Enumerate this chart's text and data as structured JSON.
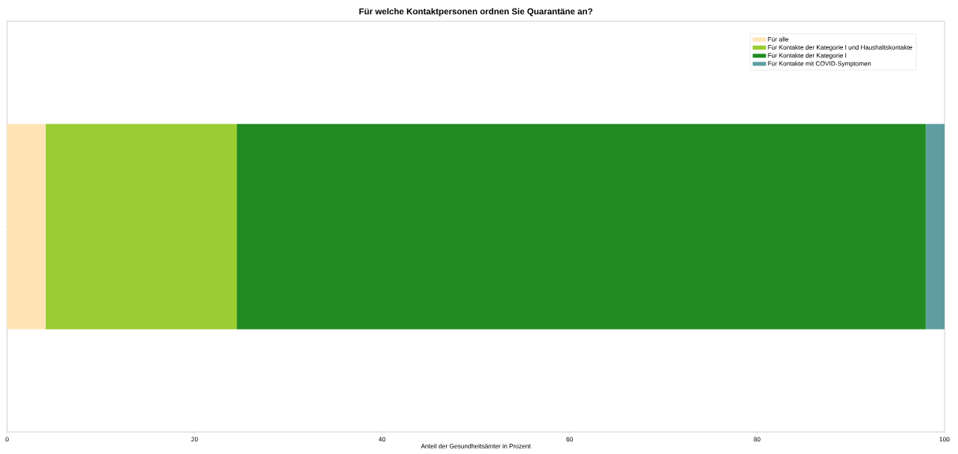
{
  "chart_data": {
    "type": "bar",
    "orientation": "horizontal",
    "stacked": true,
    "title": "Für welche Kontaktpersonen ordnen Sie Quarantäne an?",
    "xlabel": "Anteil der Gesundheitsämter in Prozent",
    "categories": [
      null
    ],
    "series": [
      {
        "name": "Für alle",
        "color": "#ffe4b5",
        "values": [
          4.1
        ]
      },
      {
        "name": "Für Kontakte der Kategorie I und Haushaltskontakte",
        "color": "#9acd32",
        "values": [
          20.4
        ]
      },
      {
        "name": "Für Kontakte der Kategorie I",
        "color": "#228b22",
        "values": [
          73.5
        ]
      },
      {
        "name": "Für Kontakte mit COVID-Symptomen",
        "color": "#5f9ea0",
        "values": [
          2.0
        ]
      }
    ],
    "xlim": [
      0,
      100
    ],
    "xticks": [
      0,
      20,
      40,
      60,
      80,
      100
    ],
    "legend": "top right",
    "grid": false
  }
}
